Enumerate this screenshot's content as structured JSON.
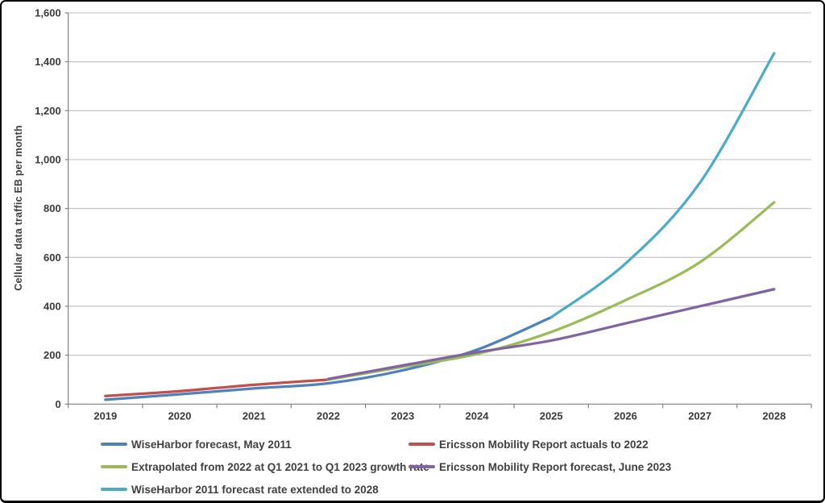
{
  "chart_data": {
    "type": "line",
    "title": "",
    "xlabel": "",
    "ylabel": "Cellular data traffic EB per month",
    "ylim": [
      0,
      1600
    ],
    "ytick_step": 200,
    "ytick_labels": [
      "0",
      "200",
      "400",
      "600",
      "800",
      "1,000",
      "1,200",
      "1,400",
      "1,600"
    ],
    "categories": [
      "2019",
      "2020",
      "2021",
      "2022",
      "2023",
      "2024",
      "2025",
      "2026",
      "2027",
      "2028"
    ],
    "grid": "horizontal-only",
    "legend_position": "bottom-two-columns",
    "line_style": "smoothed",
    "axis_color": "#808080",
    "gridline_color": "#bfbfbf",
    "series": [
      {
        "name": "WiseHarbor forecast, May 2011",
        "color": "#4F81BD",
        "values": [
          18,
          40,
          64,
          85,
          138,
          222,
          355,
          null,
          null,
          null
        ]
      },
      {
        "name": "Ericsson Mobility Report actuals to 2022",
        "color": "#C0504D",
        "values": [
          33,
          53,
          79,
          100,
          null,
          null,
          null,
          null,
          null,
          null
        ]
      },
      {
        "name": "Extrapolated from 2022 at Q1 2021 to Q1 2023 growth rate",
        "color": "#9BBB59",
        "values": [
          null,
          null,
          null,
          100,
          152,
          205,
          295,
          425,
          580,
          825
        ]
      },
      {
        "name": "Ericsson Mobility Report forecast, June 2023",
        "color": "#8064A2",
        "values": [
          null,
          null,
          null,
          103,
          158,
          212,
          260,
          330,
          400,
          470
        ]
      },
      {
        "name": "WiseHarbor 2011 forecast rate extended to 2028",
        "color": "#4BACC6",
        "values": [
          null,
          null,
          null,
          null,
          null,
          null,
          355,
          575,
          905,
          1435
        ]
      }
    ],
    "legend_layout_rows": [
      [
        0,
        1
      ],
      [
        2,
        3
      ],
      [
        4
      ]
    ]
  }
}
